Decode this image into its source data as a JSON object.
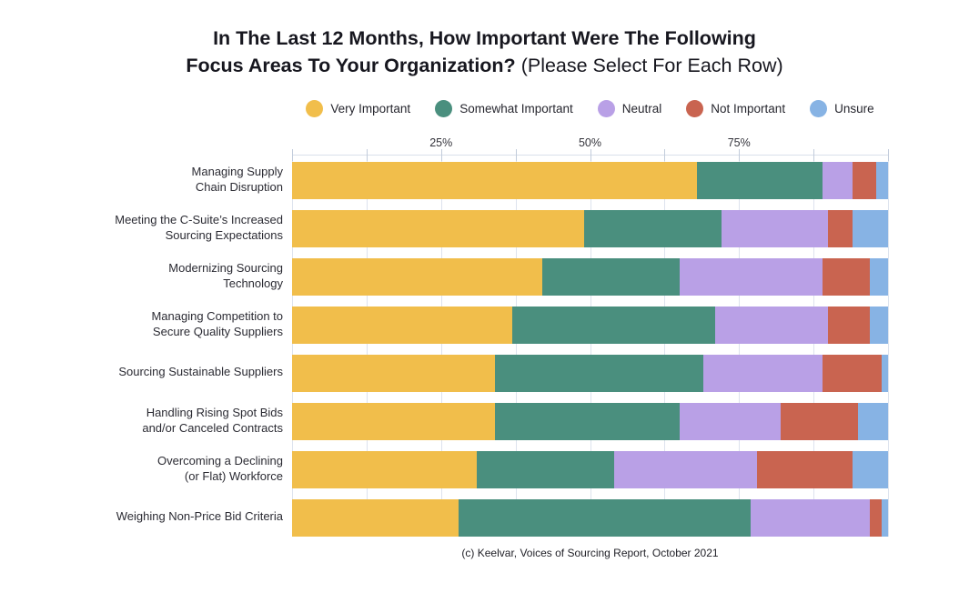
{
  "title": {
    "line1": "In The Last 12 Months, How Important Were The Following",
    "line2_bold": "Focus Areas To Your Organization?",
    "line2_note": "(Please Select For Each Row)"
  },
  "axis": {
    "tick_labels": [
      {
        "text": "25%",
        "pos": 25
      },
      {
        "text": "50%",
        "pos": 50
      },
      {
        "text": "75%",
        "pos": 75
      }
    ],
    "grid_step": 12.5
  },
  "footer": "(c) Keelvar, Voices of Sourcing Report, October 2021",
  "colors": {
    "very_important": "#F1BE4B",
    "somewhat_important": "#4A8F7E",
    "neutral": "#B9A0E6",
    "not_important": "#C96450",
    "unsure": "#87B3E4",
    "gridline": "#DDE3EE"
  },
  "chart_data": {
    "type": "bar",
    "orientation": "horizontal",
    "stacked": true,
    "x_unit": "percent",
    "xlim": [
      0,
      100
    ],
    "grid": true,
    "legend_position": "top",
    "title": "In The Last 12 Months, How Important Were The Following Focus Areas To Your Organization? (Please Select For Each Row)",
    "categories": [
      "Managing Supply Chain Disruption",
      "Meeting the C-Suite’s Increased Sourcing Expectations",
      "Modernizing Sourcing Technology",
      "Managing Competition to Secure Quality Suppliers",
      "Sourcing Sustainable Suppliers",
      "Handling Rising Spot Bids and/or Canceled Contracts",
      "Overcoming a Declining (or Flat) Workforce",
      "Weighing Non-Price Bid Criteria"
    ],
    "category_display_lines": [
      [
        "Managing Supply",
        "Chain Disruption"
      ],
      [
        "Meeting the C-Suite’s Increased",
        "Sourcing Expectations"
      ],
      [
        "Modernizing Sourcing",
        "Technology"
      ],
      [
        "Managing Competition to",
        "Secure Quality Suppliers"
      ],
      [
        "Sourcing Sustainable Suppliers"
      ],
      [
        "Handling Rising Spot Bids",
        "and/or Canceled Contracts"
      ],
      [
        "Overcoming a Declining",
        "(or Flat) Workforce"
      ],
      [
        "Weighing Non-Price Bid Criteria"
      ]
    ],
    "series": [
      {
        "name": "Very Important",
        "color": "#F1BE4B",
        "values": [
          68,
          49,
          42,
          37,
          34,
          34,
          31,
          28
        ]
      },
      {
        "name": "Somewhat Important",
        "color": "#4A8F7E",
        "values": [
          21,
          23,
          23,
          34,
          35,
          31,
          23,
          49
        ]
      },
      {
        "name": "Neutral",
        "color": "#B9A0E6",
        "values": [
          5,
          18,
          24,
          19,
          20,
          17,
          24,
          20
        ]
      },
      {
        "name": "Not Important",
        "color": "#C96450",
        "values": [
          4,
          4,
          8,
          7,
          10,
          13,
          16,
          2
        ]
      },
      {
        "name": "Unsure",
        "color": "#87B3E4",
        "values": [
          2,
          6,
          3,
          3,
          1,
          5,
          6,
          1
        ]
      }
    ]
  }
}
